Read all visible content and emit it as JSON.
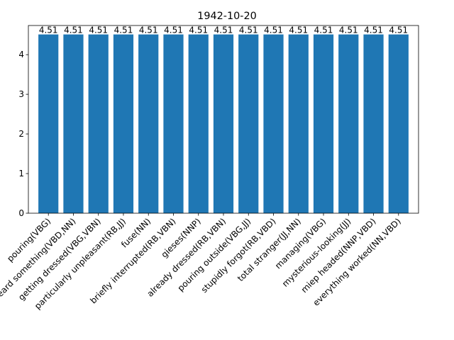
{
  "chart_data": {
    "type": "bar",
    "title": "1942-10-20",
    "xlabel": "",
    "ylabel": "",
    "categories": [
      "pouring(VBG)",
      "heard something(VBD,NN)",
      "getting dressed(VBG,VBN)",
      "particularly unpleasant(RB,JJ)",
      "fuse(NN)",
      "briefly interrupted(RB,VBN)",
      "gieses(NNP)",
      "already dressed(RB,VBN)",
      "pouring outside(VBG,JJ)",
      "stupidly forgot(RB,VBD)",
      "total stranger(JJ,NN)",
      "managing(VBG)",
      "mysterious-looking(JJ)",
      "miep headed(NNP,VBD)",
      "everything worked(NN,VBD)"
    ],
    "values": [
      4.51,
      4.51,
      4.51,
      4.51,
      4.51,
      4.51,
      4.51,
      4.51,
      4.51,
      4.51,
      4.51,
      4.51,
      4.51,
      4.51,
      4.51
    ],
    "data_labels": [
      "4.51",
      "4.51",
      "4.51",
      "4.51",
      "4.51",
      "4.51",
      "4.51",
      "4.51",
      "4.51",
      "4.51",
      "4.51",
      "4.51",
      "4.51",
      "4.51",
      "4.51"
    ],
    "yticks": [
      0,
      1,
      2,
      3,
      4
    ],
    "ylim": [
      0,
      4.7355
    ],
    "bar_color": "#1f77b4",
    "grid": false,
    "legend": "none"
  }
}
